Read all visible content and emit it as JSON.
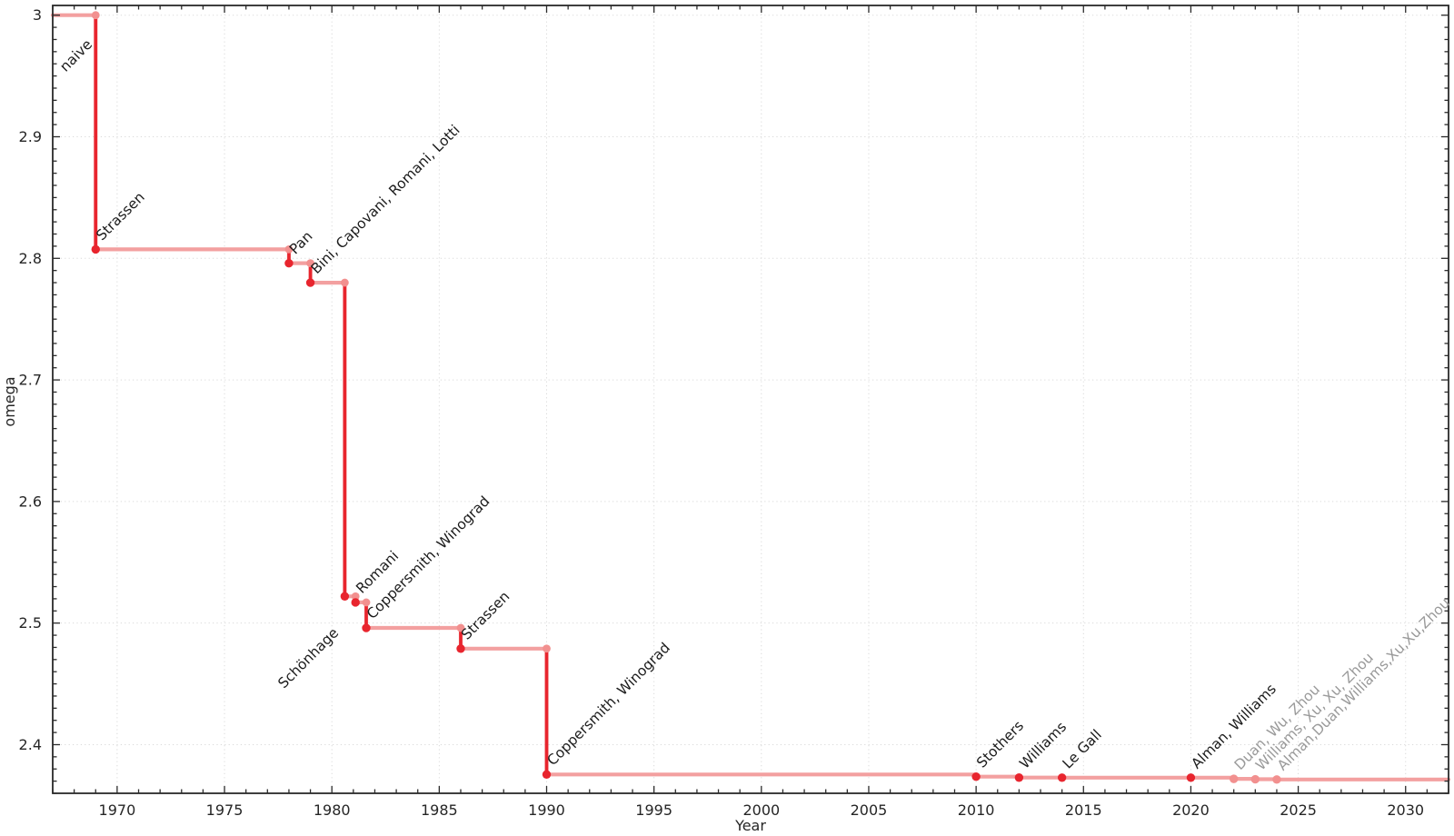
{
  "page": {
    "background": "#ffffff"
  },
  "chart_data": {
    "type": "line",
    "subtype": "step-post",
    "title": "",
    "xlabel": "Year",
    "ylabel": "omega",
    "xlim": [
      1967,
      2032
    ],
    "ylim": [
      2.36,
      3.008
    ],
    "grid": "dotted-at-major-ticks",
    "legend": "none",
    "x_major_ticks": [
      1970,
      1975,
      1980,
      1985,
      1990,
      1995,
      2000,
      2005,
      2010,
      2015,
      2020,
      2025,
      2030
    ],
    "x_tick_labels": [
      "1970",
      "1975",
      "1980",
      "1985",
      "1990",
      "1995",
      "2000",
      "2005",
      "2010",
      "2015",
      "2020",
      "2025",
      "2030"
    ],
    "x_minor_step": 1,
    "y_major_ticks": [
      2.4,
      2.5,
      2.6,
      2.7,
      2.8,
      2.9,
      3.0
    ],
    "y_tick_labels": [
      "2.4",
      "2.5",
      "2.6",
      "2.7",
      "2.8",
      "2.9",
      "3"
    ],
    "y_minor_step": 0.01,
    "series_start": {
      "year": 1967,
      "omega": 3.0
    },
    "points": [
      {
        "label": "naive",
        "year": 1969,
        "omega": 3.0,
        "muted": false
      },
      {
        "label": "Strassen",
        "year": 1969,
        "omega": 2.8074,
        "muted": false
      },
      {
        "label": "Pan",
        "year": 1978,
        "omega": 2.796,
        "muted": false
      },
      {
        "label": "Bini, Capovani, Romani, Lotti",
        "year": 1979,
        "omega": 2.78,
        "muted": false
      },
      {
        "label": "Schönhage",
        "year": 1980.6,
        "omega": 2.522,
        "muted": false
      },
      {
        "label": "Romani",
        "year": 1981.1,
        "omega": 2.517,
        "muted": false
      },
      {
        "label": "Coppersmith, Winograd",
        "year": 1981.6,
        "omega": 2.496,
        "muted": false
      },
      {
        "label": "Strassen",
        "year": 1986,
        "omega": 2.479,
        "muted": false
      },
      {
        "label": "Coppersmith, Winograd",
        "year": 1990,
        "omega": 2.3755,
        "muted": false
      },
      {
        "label": "Stothers",
        "year": 2010,
        "omega": 2.3737,
        "muted": false
      },
      {
        "label": "Williams",
        "year": 2012,
        "omega": 2.3729,
        "muted": false
      },
      {
        "label": "Le Gall",
        "year": 2014,
        "omega": 2.3728639,
        "muted": false
      },
      {
        "label": "Alman, Williams",
        "year": 2020,
        "omega": 2.3728596,
        "muted": false
      },
      {
        "label": "Duan, Wu, Zhou",
        "year": 2022,
        "omega": 2.371866,
        "muted": true
      },
      {
        "label": "Williams, Xu, Xu, Zhou",
        "year": 2023,
        "omega": 2.371552,
        "muted": true
      },
      {
        "label": "Alman,Duan,Williams,Xu,Xu,Zhou",
        "year": 2024,
        "omega": 2.371339,
        "muted": true
      }
    ],
    "colors": {
      "drop_line_red": "#e8252e",
      "step_line_pink": "#f3a0a0",
      "marker_red": "#e8252e",
      "marker_pink": "#f2908f",
      "point_label": "#1c1c1c",
      "point_label_muted": "#9a9a9a",
      "grid": "#d9d9d9",
      "axis": "#2a2a2a",
      "tick_text": "#262626"
    }
  }
}
